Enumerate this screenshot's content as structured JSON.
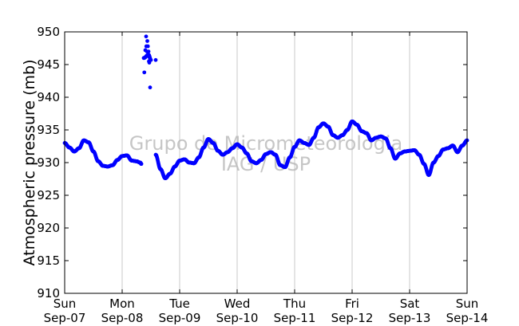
{
  "watermark": {
    "line1": "Grupo de Micrometeorologia",
    "line2": "IAG / USP"
  },
  "colors": {
    "series": "#0000ff",
    "grid": "#c8c8c8",
    "axis": "#000000",
    "watermark": "#b4b4b4"
  },
  "chart_data": {
    "type": "scatter",
    "title": "",
    "xlabel": "",
    "ylabel": "Atmospheric pressure (mb)",
    "ylim": [
      910,
      950
    ],
    "yticks": [
      910,
      915,
      920,
      925,
      930,
      935,
      940,
      945,
      950
    ],
    "xlim": [
      "2008-09-07 00:00",
      "2008-09-14 00:00"
    ],
    "xticks": [
      {
        "day": "Sun",
        "date": "Sep-07"
      },
      {
        "day": "Mon",
        "date": "Sep-08"
      },
      {
        "day": "Tue",
        "date": "Sep-09"
      },
      {
        "day": "Wed",
        "date": "Sep-10"
      },
      {
        "day": "Thu",
        "date": "Sep-11"
      },
      {
        "day": "Fri",
        "date": "Sep-12"
      },
      {
        "day": "Sat",
        "date": "Sep-13"
      },
      {
        "day": "Sun",
        "date": "Sep-14"
      }
    ],
    "grid_x": true,
    "grid_y": false,
    "series": [
      {
        "x": [
          "Sep-07 00:00",
          "Sep-07 02:00",
          "Sep-07 04:00",
          "Sep-07 06:00",
          "Sep-07 08:00",
          "Sep-07 10:00",
          "Sep-07 12:00",
          "Sep-07 14:00",
          "Sep-07 16:00",
          "Sep-07 18:00",
          "Sep-07 20:00",
          "Sep-07 22:00",
          "Sep-08 00:00",
          "Sep-08 02:00",
          "Sep-08 04:00",
          "Sep-08 06:00",
          "Sep-08 07:30",
          "Sep-08 08:00",
          "Sep-08 09:00",
          "Sep-08 11:00",
          "Sep-08 12:00",
          "Sep-08 14:00",
          "Sep-08 16:00",
          "Sep-08 18:00",
          "Sep-08 20:00",
          "Sep-08 22:00",
          "Sep-09 00:00",
          "Sep-09 02:00",
          "Sep-09 04:00",
          "Sep-09 06:00",
          "Sep-09 08:00",
          "Sep-09 10:00",
          "Sep-09 12:00",
          "Sep-09 14:00",
          "Sep-09 16:00",
          "Sep-09 18:00",
          "Sep-09 20:00",
          "Sep-09 22:00",
          "Sep-10 00:00",
          "Sep-10 02:00",
          "Sep-10 04:00",
          "Sep-10 06:00",
          "Sep-10 08:00",
          "Sep-10 10:00",
          "Sep-10 12:00",
          "Sep-10 14:00",
          "Sep-10 16:00",
          "Sep-10 18:00",
          "Sep-10 20:00",
          "Sep-10 22:00",
          "Sep-11 00:00",
          "Sep-11 02:00",
          "Sep-11 04:00",
          "Sep-11 06:00",
          "Sep-11 08:00",
          "Sep-11 10:00",
          "Sep-11 12:00",
          "Sep-11 14:00",
          "Sep-11 16:00",
          "Sep-11 18:00",
          "Sep-11 20:00",
          "Sep-11 22:00",
          "Sep-12 00:00",
          "Sep-12 02:00",
          "Sep-12 04:00",
          "Sep-12 06:00",
          "Sep-12 08:00",
          "Sep-12 10:00",
          "Sep-12 12:00",
          "Sep-12 14:00",
          "Sep-12 16:00",
          "Sep-12 18:00",
          "Sep-12 20:00",
          "Sep-12 22:00",
          "Sep-13 00:00",
          "Sep-13 02:00",
          "Sep-13 04:00",
          "Sep-13 06:00",
          "Sep-13 08:00",
          "Sep-13 10:00",
          "Sep-13 12:00",
          "Sep-13 14:00",
          "Sep-13 16:00",
          "Sep-13 18:00",
          "Sep-13 20:00",
          "Sep-13 22:00",
          "Sep-14 00:00"
        ],
        "y": [
          933.0,
          932.3,
          931.7,
          932.2,
          933.4,
          933.1,
          931.7,
          930.2,
          929.5,
          929.4,
          929.6,
          930.4,
          931.0,
          931.1,
          930.3,
          930.2,
          930.0,
          929.8,
          946.0,
          946.5,
          945.7,
          931.2,
          929.0,
          927.6,
          928.3,
          929.4,
          930.3,
          930.5,
          930.0,
          929.9,
          930.8,
          932.3,
          933.6,
          933.0,
          931.8,
          931.2,
          931.6,
          932.2,
          932.8,
          932.3,
          931.4,
          930.2,
          929.9,
          930.4,
          931.3,
          931.6,
          931.2,
          929.6,
          929.3,
          930.8,
          932.4,
          933.4,
          933.0,
          932.7,
          933.8,
          935.4,
          936.0,
          935.5,
          934.2,
          933.8,
          934.2,
          935.0,
          936.3,
          935.8,
          934.8,
          934.5,
          933.4,
          933.8,
          934.0,
          933.7,
          932.2,
          930.6,
          931.4,
          931.7,
          931.8,
          931.9,
          931.2,
          929.8,
          928.1,
          930.0,
          931.0,
          932.0,
          932.2,
          932.6,
          931.6,
          932.6,
          933.4
        ]
      }
    ],
    "outliers": {
      "x": [
        "Sep-08 09:15",
        "Sep-08 09:40",
        "Sep-08 10:00",
        "Sep-08 10:05",
        "Sep-08 10:20",
        "Sep-08 10:30",
        "Sep-08 10:45",
        "Sep-08 11:00",
        "Sep-08 11:10",
        "Sep-08 11:20",
        "Sep-08 11:40",
        "Sep-08 14:00"
      ],
      "y": [
        943.8,
        947.2,
        949.3,
        947.8,
        947.0,
        948.6,
        947.8,
        947.0,
        945.5,
        945.3,
        941.5,
        945.7
      ]
    }
  }
}
